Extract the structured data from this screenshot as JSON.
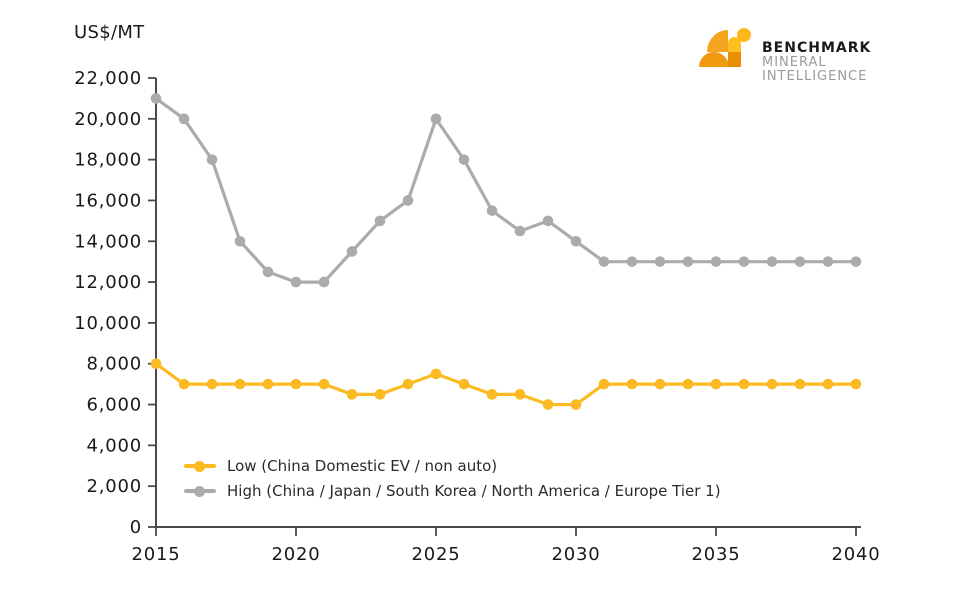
{
  "colors": {
    "low_series": "#FCBA22",
    "high_series": "#ABABAB",
    "axis": "#4a4a4a",
    "text": "#1a1a1a",
    "logo_orange": "#F5A41F",
    "logo_dome": "#EF9A10",
    "logo_overlap": "#E88E05",
    "logo_yellow": "#FFC01E",
    "logo_dot": "#FFB81C"
  },
  "logo": {
    "line1": "BENCHMARK",
    "line2": "MINERAL",
    "line3": "INTELLIGENCE"
  },
  "chart_data": {
    "type": "line",
    "title": "",
    "xlabel": "",
    "ylabel": "US$/MT",
    "xlim": [
      2015,
      2040
    ],
    "ylim": [
      0,
      22000
    ],
    "ytick_step": 2000,
    "xticks": [
      2015,
      2020,
      2025,
      2030,
      2035,
      2040
    ],
    "grid": false,
    "legend_position": "inside-bottom-left",
    "x": [
      2015,
      2016,
      2017,
      2018,
      2019,
      2020,
      2021,
      2022,
      2023,
      2024,
      2025,
      2026,
      2027,
      2028,
      2029,
      2030,
      2031,
      2032,
      2033,
      2034,
      2035,
      2036,
      2037,
      2038,
      2039,
      2040
    ],
    "series": [
      {
        "name": "Low (China Domestic EV / non auto)",
        "color": "#FCBA22",
        "values": [
          8000,
          7000,
          7000,
          7000,
          7000,
          7000,
          7000,
          6500,
          6500,
          7000,
          7500,
          7000,
          6500,
          6500,
          6000,
          6000,
          7000,
          7000,
          7000,
          7000,
          7000,
          7000,
          7000,
          7000,
          7000,
          7000
        ]
      },
      {
        "name": "High (China / Japan / South Korea / North America / Europe Tier 1)",
        "color": "#ABABAB",
        "values": [
          21000,
          20000,
          18000,
          14000,
          12500,
          12000,
          12000,
          13500,
          15000,
          16000,
          20000,
          18000,
          15500,
          14500,
          15000,
          14000,
          13000,
          13000,
          13000,
          13000,
          13000,
          13000,
          13000,
          13000,
          13000,
          13000
        ]
      }
    ]
  }
}
